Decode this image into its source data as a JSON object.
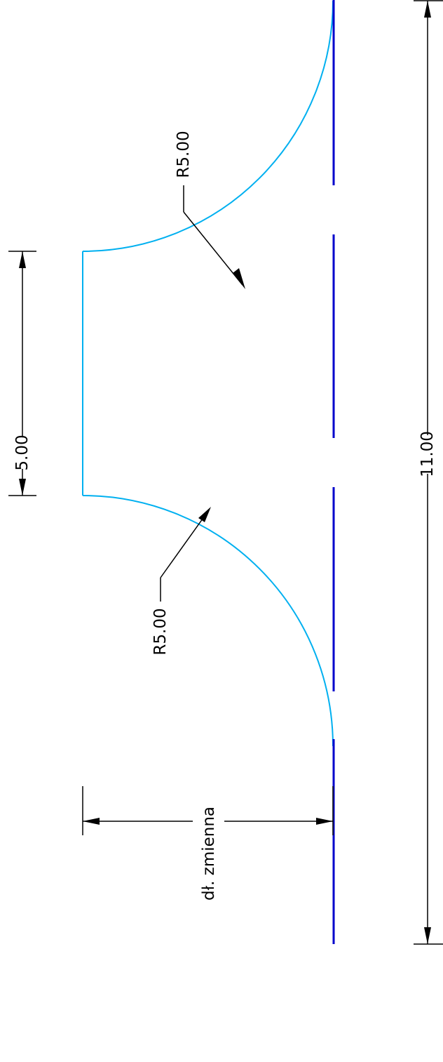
{
  "colors": {
    "profile": "#00b0f0",
    "centerline": "#0000cc",
    "dimension": "#000000",
    "background": "#ffffff"
  },
  "dimensions": {
    "top_width": "5.00",
    "total_width": "11.00",
    "radius_top": "R5.00",
    "radius_bottom": "R5.00",
    "depth": "dł. zmienna"
  }
}
